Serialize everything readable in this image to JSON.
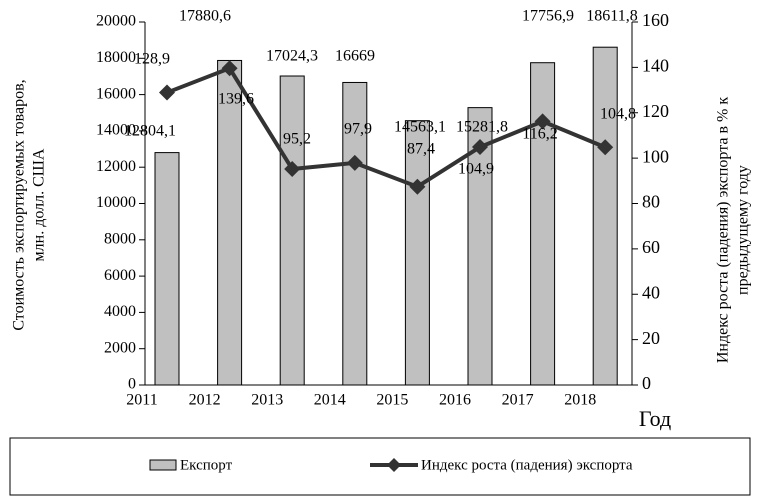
{
  "chart_data": {
    "type": "bar_line",
    "categories": [
      "2011",
      "2012",
      "2013",
      "2014",
      "2015",
      "2016",
      "2017",
      "2018"
    ],
    "series": [
      {
        "name": "Експорт",
        "type": "bar",
        "color": "#c0c0c0",
        "axis": "y",
        "values": [
          12804.1,
          17880.6,
          17024.3,
          16669,
          14563.1,
          15281.8,
          17756.9,
          18611.8
        ],
        "value_labels": [
          "12804,1",
          "17880,6",
          "17024,3",
          "16669",
          "14563,1",
          "15281,8",
          "17756,9",
          "18611,8"
        ]
      },
      {
        "name": "Индекс роста (падения) экспорта",
        "type": "line",
        "color": "#333333",
        "axis": "y2",
        "values": [
          128.9,
          139.6,
          95.2,
          97.9,
          87.4,
          104.9,
          116.2,
          104.8
        ],
        "value_labels": [
          "128,9",
          "139,6",
          "95,2",
          "97,9",
          "87,4",
          "104,9",
          "116,2",
          "104,8"
        ]
      }
    ],
    "y_label": [
      "Стоимость экспортируемых товаров,",
      "млн. долл. США"
    ],
    "y2_label": [
      "Индекс роста (падения) экспорта  в % к",
      "предыдущему году"
    ],
    "x_label": "Год",
    "ylim": [
      0,
      20000
    ],
    "yticks": [
      0,
      2000,
      4000,
      6000,
      8000,
      10000,
      12000,
      14000,
      16000,
      18000,
      20000
    ],
    "y2lim": [
      0,
      160
    ],
    "y2ticks": [
      0,
      20,
      40,
      60,
      80,
      100,
      120,
      140,
      160
    ],
    "grid": false,
    "legend": "bottom"
  }
}
